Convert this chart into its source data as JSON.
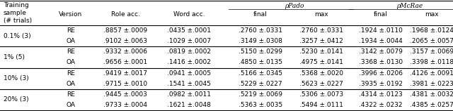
{
  "rho_pado_label": "ρPado",
  "rho_mcrae_label": "ρMcRae",
  "rows": [
    {
      "group": "0.1% (3)",
      "version": "RE",
      "role_acc": ".8857 ±.0009",
      "word_acc": ".0435 ±.0001",
      "pado_final": ".2760 ±.0331",
      "pado_max": ".2760 ±.0331",
      "mcrae_final": ".1924 ±.0110",
      "mcrae_max": ".1968 ±.0124"
    },
    {
      "group": "0.1% (3)",
      "version": "OA",
      "role_acc": ".9102 ±.0063",
      "word_acc": ".1029 ±.0007",
      "pado_final": ".3149 ±.0308",
      "pado_max": ".3257 ±.0412",
      "mcrae_final": ".1934 ±.0044",
      "mcrae_max": ".2065 ±.0057"
    },
    {
      "group": "1% (5)",
      "version": "RE",
      "role_acc": ".9332 ±.0006",
      "word_acc": ".0819 ±.0002",
      "pado_final": ".5150 ±.0299",
      "pado_max": ".5230 ±.0141",
      "mcrae_final": ".3142 ±.0079",
      "mcrae_max": ".3157 ±.0069"
    },
    {
      "group": "1% (5)",
      "version": "OA",
      "role_acc": ".9656 ±.0001",
      "word_acc": ".1416 ±.0002",
      "pado_final": ".4850 ±.0135",
      "pado_max": ".4975 ±.0141",
      "mcrae_final": ".3368 ±.0130",
      "mcrae_max": ".3398 ±.0118"
    },
    {
      "group": "10% (3)",
      "version": "RE",
      "role_acc": ".9419 ±.0017",
      "word_acc": ".0941 ±.0005",
      "pado_final": ".5166 ±.0345",
      "pado_max": ".5368 ±.0020",
      "mcrae_final": ".3996 ±.0206",
      "mcrae_max": ".4126 ±.0091"
    },
    {
      "group": "10% (3)",
      "version": "OA",
      "role_acc": ".9715 ±.0010",
      "word_acc": ".1541 ±.0045",
      "pado_final": ".5229 ±.0227",
      "pado_max": ".5623 ±.0227",
      "mcrae_final": ".3935 ±.0192",
      "mcrae_max": ".3981 ±.0223"
    },
    {
      "group": "20% (3)",
      "version": "RE",
      "role_acc": ".9445 ±.0003",
      "word_acc": ".0982 ±.0011",
      "pado_final": ".5219 ±.0069",
      "pado_max": ".5306 ±.0073",
      "mcrae_final": ".4314 ±.0123",
      "mcrae_max": ".4381 ±.0032"
    },
    {
      "group": "20% (3)",
      "version": "OA",
      "role_acc": ".9733 ±.0004",
      "word_acc": ".1621 ±.0048",
      "pado_final": ".5363 ±.0035",
      "pado_max": ".5494 ±.0111",
      "mcrae_final": ".4322 ±.0232",
      "mcrae_max": ".4385 ±.0257"
    }
  ],
  "group_order": [
    "0.1% (3)",
    "1% (5)",
    "10% (3)",
    "20% (3)"
  ],
  "bg_color": "#ffffff",
  "text_color": "#000000",
  "border_color": "#000000",
  "font_size": 6.5,
  "header_font_size": 6.5
}
